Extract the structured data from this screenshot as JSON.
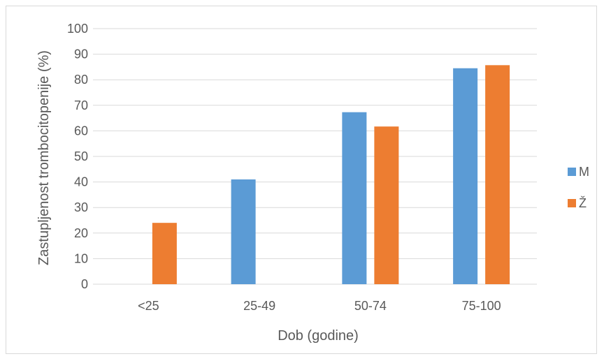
{
  "chart_data": {
    "type": "bar",
    "title": "",
    "xlabel": "Dob (godine)",
    "ylabel": "Zastupljenost trombocitopenije (%)",
    "categories": [
      "<25",
      "25-49",
      "50-74",
      "75-100"
    ],
    "ylim": [
      0,
      100
    ],
    "yticks": [
      "0",
      "10",
      "20",
      "30",
      "40",
      "50",
      "60",
      "70",
      "80",
      "90",
      "100"
    ],
    "grid": true,
    "legend_position": "right",
    "series": [
      {
        "name": "M",
        "color": "#5b9bd5",
        "values": [
          0,
          41,
          67.3,
          84.5
        ]
      },
      {
        "name": "Ž",
        "color": "#ed7d31",
        "values": [
          24,
          0,
          61.7,
          85.7
        ]
      }
    ]
  }
}
